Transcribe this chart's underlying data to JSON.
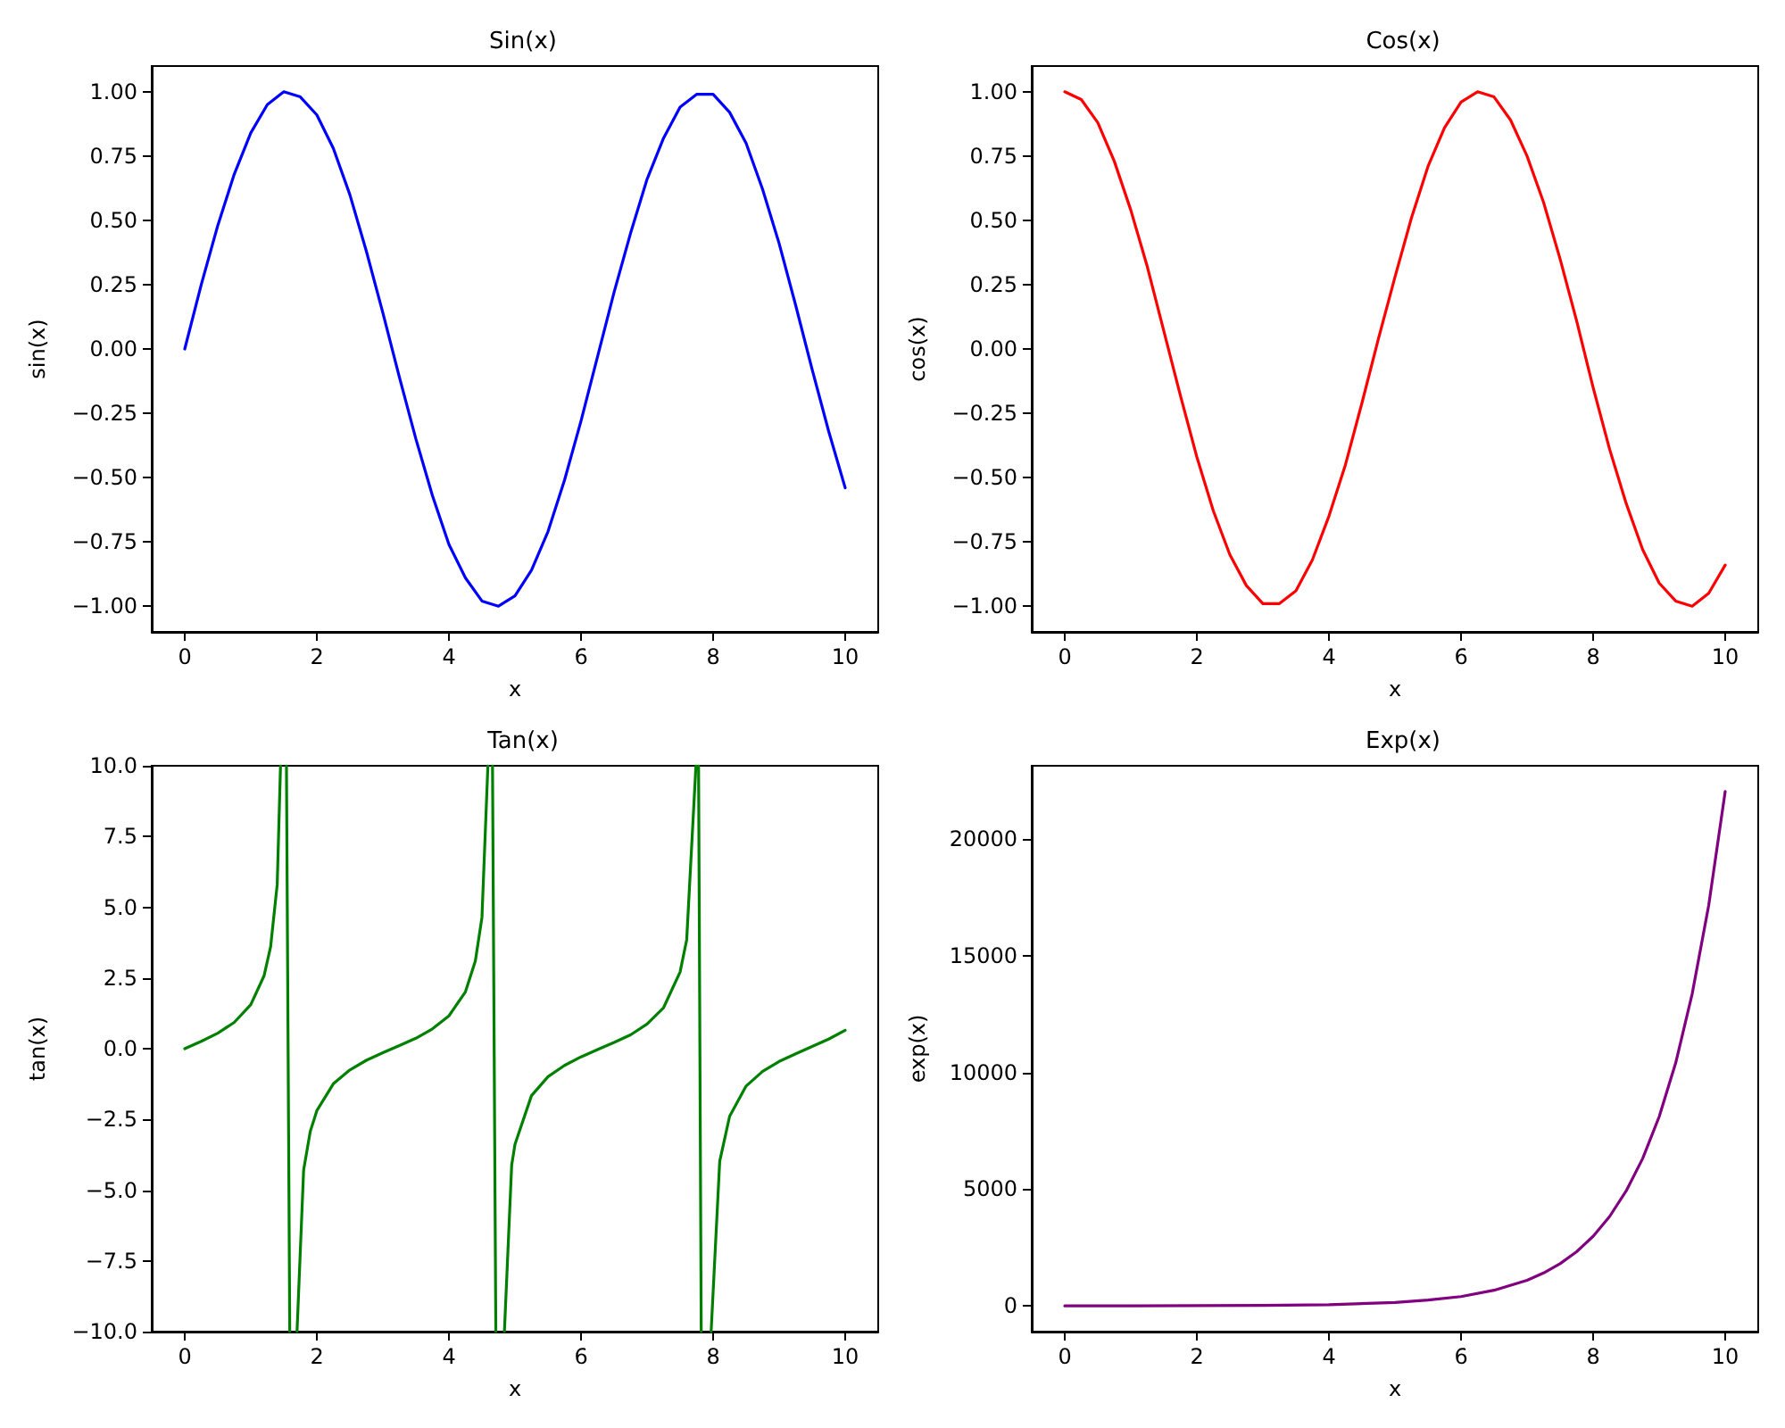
{
  "chart_data": [
    {
      "type": "line",
      "title": "Sin(x)",
      "xlabel": "x",
      "ylabel": "sin(x)",
      "xlim": [
        -0.5,
        10.5
      ],
      "xticks": [
        0,
        2,
        4,
        6,
        8,
        10
      ],
      "ylim": [
        -1.1,
        1.1
      ],
      "yticks": [
        {
          "value": -1,
          "label": "−1.00"
        },
        {
          "value": -0.75,
          "label": "−0.75"
        },
        {
          "value": -0.5,
          "label": "−0.50"
        },
        {
          "value": -0.25,
          "label": "−0.25"
        },
        {
          "value": 0,
          "label": "0.00"
        },
        {
          "value": 0.25,
          "label": "0.25"
        },
        {
          "value": 0.5,
          "label": "0.50"
        },
        {
          "value": 0.75,
          "label": "0.75"
        },
        {
          "value": 1,
          "label": "1.00"
        }
      ],
      "grid": false,
      "marker": "none",
      "line_style": "solid",
      "x": [
        0,
        0.25,
        0.5,
        0.75,
        1,
        1.25,
        1.5,
        1.75,
        2,
        2.25,
        2.5,
        2.75,
        3,
        3.25,
        3.5,
        3.75,
        4,
        4.25,
        4.5,
        4.75,
        5,
        5.25,
        5.5,
        5.75,
        6,
        6.25,
        6.5,
        6.75,
        7,
        7.25,
        7.5,
        7.75,
        8,
        8.25,
        8.5,
        8.75,
        9,
        9.25,
        9.5,
        9.75,
        10
      ],
      "series": [
        {
          "color": "#0000ff",
          "values": [
            0,
            0.25,
            0.48,
            0.68,
            0.84,
            0.95,
            1,
            0.98,
            0.91,
            0.78,
            0.6,
            0.38,
            0.14,
            -0.11,
            -0.35,
            -0.57,
            -0.76,
            -0.89,
            -0.98,
            -1,
            -0.96,
            -0.86,
            -0.71,
            -0.51,
            -0.28,
            -0.03,
            0.22,
            0.45,
            0.66,
            0.82,
            0.94,
            0.99,
            0.99,
            0.92,
            0.8,
            0.62,
            0.41,
            0.17,
            -0.08,
            -0.32,
            -0.54
          ]
        }
      ]
    },
    {
      "type": "line",
      "title": "Cos(x)",
      "xlabel": "x",
      "ylabel": "cos(x)",
      "xlim": [
        -0.5,
        10.5
      ],
      "xticks": [
        0,
        2,
        4,
        6,
        8,
        10
      ],
      "ylim": [
        -1.1,
        1.1
      ],
      "yticks": [
        {
          "value": -1,
          "label": "−1.00"
        },
        {
          "value": -0.75,
          "label": "−0.75"
        },
        {
          "value": -0.5,
          "label": "−0.50"
        },
        {
          "value": -0.25,
          "label": "−0.25"
        },
        {
          "value": 0,
          "label": "0.00"
        },
        {
          "value": 0.25,
          "label": "0.25"
        },
        {
          "value": 0.5,
          "label": "0.50"
        },
        {
          "value": 0.75,
          "label": "0.75"
        },
        {
          "value": 1,
          "label": "1.00"
        }
      ],
      "grid": false,
      "marker": "none",
      "line_style": "solid",
      "x": [
        0,
        0.25,
        0.5,
        0.75,
        1,
        1.25,
        1.5,
        1.75,
        2,
        2.25,
        2.5,
        2.75,
        3,
        3.25,
        3.5,
        3.75,
        4,
        4.25,
        4.5,
        4.75,
        5,
        5.25,
        5.5,
        5.75,
        6,
        6.25,
        6.5,
        6.75,
        7,
        7.25,
        7.5,
        7.75,
        8,
        8.25,
        8.5,
        8.75,
        9,
        9.25,
        9.5,
        9.75,
        10
      ],
      "series": [
        {
          "color": "#ff0000",
          "values": [
            1,
            0.97,
            0.88,
            0.73,
            0.54,
            0.32,
            0.07,
            -0.18,
            -0.42,
            -0.63,
            -0.8,
            -0.92,
            -0.99,
            -0.99,
            -0.94,
            -0.82,
            -0.65,
            -0.45,
            -0.21,
            0.04,
            0.28,
            0.51,
            0.71,
            0.86,
            0.96,
            1,
            0.98,
            0.89,
            0.75,
            0.57,
            0.35,
            0.11,
            -0.15,
            -0.39,
            -0.6,
            -0.78,
            -0.91,
            -0.98,
            -1,
            -0.95,
            -0.84
          ]
        }
      ]
    },
    {
      "type": "line",
      "title": "Tan(x)",
      "xlabel": "x",
      "ylabel": "tan(x)",
      "xlim": [
        -0.5,
        10.5
      ],
      "xticks": [
        0,
        2,
        4,
        6,
        8,
        10
      ],
      "ylim": [
        -10,
        10
      ],
      "yticks": [
        {
          "value": -10,
          "label": "−10.0"
        },
        {
          "value": -7.5,
          "label": "−7.5"
        },
        {
          "value": -5,
          "label": "−5.0"
        },
        {
          "value": -2.5,
          "label": "−2.5"
        },
        {
          "value": 0,
          "label": "0.0"
        },
        {
          "value": 2.5,
          "label": "2.5"
        },
        {
          "value": 5,
          "label": "5.0"
        },
        {
          "value": 7.5,
          "label": "7.5"
        },
        {
          "value": 10,
          "label": "10.0"
        }
      ],
      "grid": false,
      "marker": "none",
      "line_style": "solid",
      "x": [
        0,
        0.25,
        0.5,
        0.75,
        1,
        1.2,
        1.3,
        1.4,
        1.45,
        1.49,
        1.54,
        1.59,
        1.64,
        1.7,
        1.8,
        1.9,
        2,
        2.25,
        2.5,
        2.75,
        3,
        3.25,
        3.5,
        3.75,
        4,
        4.25,
        4.4,
        4.5,
        4.59,
        4.62,
        4.66,
        4.71,
        4.77,
        4.84,
        4.95,
        5,
        5.25,
        5.5,
        5.75,
        6,
        6.25,
        6.5,
        6.75,
        7,
        7.25,
        7.5,
        7.6,
        7.74,
        7.76,
        7.78,
        7.82,
        7.9,
        7.97,
        8.1,
        8.25,
        8.5,
        8.75,
        9,
        9.25,
        9.5,
        9.75,
        10
      ],
      "series": [
        {
          "color": "#008000",
          "values": [
            0,
            0.26,
            0.55,
            0.93,
            1.56,
            2.57,
            3.6,
            5.8,
            10,
            null,
            10,
            -10,
            null,
            -10,
            -4.29,
            -2.93,
            -2.19,
            -1.24,
            -0.75,
            -0.41,
            -0.14,
            0.11,
            0.37,
            0.7,
            1.16,
            2.01,
            3.1,
            4.64,
            10,
            null,
            10,
            -10,
            null,
            -10,
            -4.12,
            -3.38,
            -1.66,
            -0.99,
            -0.59,
            -0.29,
            -0.03,
            0.22,
            0.49,
            0.87,
            1.45,
            2.71,
            3.85,
            10,
            null,
            10,
            -10,
            null,
            -10,
            -3.98,
            -2.39,
            -1.32,
            -0.8,
            -0.45,
            -0.18,
            0.08,
            0.34,
            0.65
          ]
        }
      ]
    },
    {
      "type": "line",
      "title": "Exp(x)",
      "xlabel": "x",
      "ylabel": "exp(x)",
      "xlim": [
        -0.5,
        10.5
      ],
      "xticks": [
        0,
        2,
        4,
        6,
        8,
        10
      ],
      "ylim": [
        -1100,
        23130
      ],
      "yticks": [
        0,
        5000,
        10000,
        15000,
        20000
      ],
      "grid": false,
      "marker": "none",
      "line_style": "solid",
      "x": [
        0,
        1,
        2,
        3,
        4,
        5,
        5.5,
        6,
        6.5,
        7,
        7.25,
        7.5,
        7.75,
        8,
        8.25,
        8.5,
        8.75,
        9,
        9.25,
        9.5,
        9.75,
        10
      ],
      "series": [
        {
          "color": "#800080",
          "values": [
            0,
            0,
            10,
            20,
            50,
            150,
            250,
            400,
            670,
            1100,
            1410,
            1810,
            2320,
            2980,
            3830,
            4920,
            6310,
            8100,
            10400,
            13360,
            17150,
            22030
          ]
        }
      ]
    }
  ]
}
